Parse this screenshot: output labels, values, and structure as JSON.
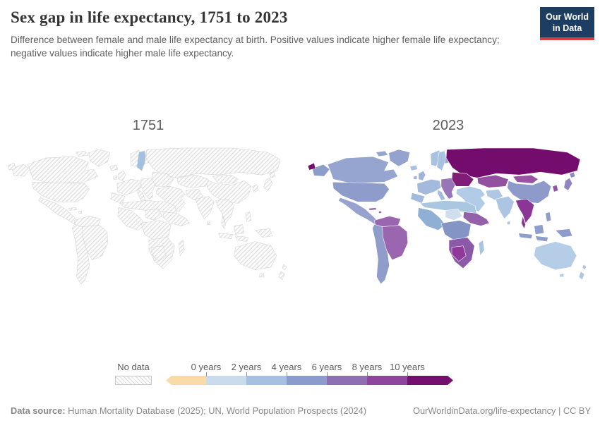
{
  "header": {
    "title": "Sex gap in life expectancy, 1751 to 2023",
    "subtitle": "Difference between female and male life expectancy at birth. Positive values indicate higher female life expectancy; negative values indicate higher male life expectancy.",
    "logo_line1": "Our World",
    "logo_line2": "in Data",
    "logo_bg": "#1d3d63",
    "logo_accent": "#d8403d"
  },
  "maps": {
    "left_label": "1751",
    "right_label": "2023",
    "region_colors": {
      "greenland": {
        "y1751": "nodata",
        "y2023": "#93a3ce"
      },
      "alaska": {
        "y1751": "nodata",
        "y2023": "#8d9dca"
      },
      "canada": {
        "y1751": "nodata",
        "y2023": "#96a5d0"
      },
      "usa": {
        "y1751": "nodata",
        "y2023": "#8d9cca"
      },
      "mexico-ca": {
        "y1751": "nodata",
        "y2023": "#97a3ce"
      },
      "caribbean": {
        "y1751": "nodata",
        "y2023": "#9670b4"
      },
      "south-sa": {
        "y1751": "nodata",
        "y2023": "#909cca"
      },
      "north-sa": {
        "y1751": "nodata",
        "y2023": "#9a66b0"
      },
      "brazil": {
        "y1751": "nodata",
        "y2023": "#9a66b0"
      },
      "iceland": {
        "y1751": "nodata",
        "y2023": "#a8c2e0"
      },
      "uk": {
        "y1751": "nodata",
        "y2023": "#9fb6da"
      },
      "norway": {
        "y1751": "nodata",
        "y2023": "#a8c2e0"
      },
      "sweden": {
        "y1751": "#a3c0de",
        "y2023": "#a8c2e0"
      },
      "finland": {
        "y1751": "nodata",
        "y2023": "#9aa5d0"
      },
      "western-europe": {
        "y1751": "nodata",
        "y2023": "#a3badd"
      },
      "eastern-europe": {
        "y1751": "nodata",
        "y2023": "#9775b7"
      },
      "russia": {
        "y1751": "nodata",
        "y2023": "#740c6e"
      },
      "ukraine": {
        "y1751": "nodata",
        "y2023": "#7f1d78"
      },
      "kazakhstan": {
        "y1751": "nodata",
        "y2023": "#9350a0"
      },
      "mongolia": {
        "y1751": "nodata",
        "y2023": "#9a53a2"
      },
      "china": {
        "y1751": "nodata",
        "y2023": "#8d9aca"
      },
      "korea": {
        "y1751": "nodata",
        "y2023": "#9356a5"
      },
      "japan": {
        "y1751": "nodata",
        "y2023": "#9185c1"
      },
      "middle-east": {
        "y1751": "nodata",
        "y2023": "#b2cbe6"
      },
      "pakistan-afghanistan": {
        "y1751": "nodata",
        "y2023": "#aec8e4"
      },
      "india": {
        "y1751": "nodata",
        "y2023": "#abc5e2"
      },
      "se-asia": {
        "y1751": "nodata",
        "y2023": "#8b3597"
      },
      "indonesia": {
        "y1751": "nodata",
        "y2023": "#8e9dca"
      },
      "png": {
        "y1751": "nodata",
        "y2023": "#8d9cca"
      },
      "australia": {
        "y1751": "nodata",
        "y2023": "#b5cde7"
      },
      "new-zealand": {
        "y1751": "nodata",
        "y2023": "#adc6e2"
      },
      "north-africa": {
        "y1751": "nodata",
        "y2023": "#aac7e2"
      },
      "west-africa": {
        "y1751": "nodata",
        "y2023": "#8fb0d4"
      },
      "sahel": {
        "y1751": "nodata",
        "y2023": "#cfdfee"
      },
      "east-africa": {
        "y1751": "nodata",
        "y2023": "#9460aa"
      },
      "central-africa": {
        "y1751": "nodata",
        "y2023": "#8494c5"
      },
      "southern-africa": {
        "y1751": "nodata",
        "y2023": "#8a5aa8"
      },
      "namibia": {
        "y1751": "nodata",
        "y2023": "#8f3a9b"
      },
      "madagascar": {
        "y1751": "nodata",
        "y2023": "#a9c4e1"
      }
    }
  },
  "legend": {
    "no_data_label": "No data",
    "ticks": [
      "0 years",
      "2 years",
      "4 years",
      "6 years",
      "8 years",
      "10 years"
    ],
    "colors": [
      "#f8dba7",
      "#c9dbec",
      "#a5c0e0",
      "#8b9bcb",
      "#8d6fb2",
      "#8f459d",
      "#76106f"
    ]
  },
  "footer": {
    "source_label": "Data source:",
    "source_text": " Human Mortality Database (2025); UN, World Population Prospects (2024)",
    "link": "OurWorldinData.org/life-expectancy | CC BY"
  },
  "chart_data": {
    "type": "heatmap",
    "subtype": "choropleth world map, small multiples (two years)",
    "title": "Sex gap in life expectancy, 1751 to 2023",
    "unit": "years (female minus male life expectancy at birth)",
    "legend_position": "bottom",
    "bins": [
      {
        "label": "< 0 years",
        "color": "#f8dba7"
      },
      {
        "label": "0–2 years",
        "color": "#c9dbec"
      },
      {
        "label": "2–4 years",
        "color": "#a5c0e0"
      },
      {
        "label": "4–6 years",
        "color": "#8b9bcb"
      },
      {
        "label": "6–8 years",
        "color": "#8d6fb2"
      },
      {
        "label": "8–10 years",
        "color": "#8f459d"
      },
      {
        "label": "10+ years",
        "color": "#76106f"
      }
    ],
    "maps": [
      {
        "year": "1751",
        "note": "All countries shown as no-data (hatched) except Sweden",
        "values_estimated_from_color": {
          "Sweden": "2–4"
        }
      },
      {
        "year": "2023",
        "values_estimated_from_color": {
          "Russia": "10+",
          "Ukraine": "10+",
          "Belarus": "10+",
          "Baltic states": "8–10",
          "Kazakhstan": "8–10",
          "Mongolia": "8–10",
          "Vietnam / Thailand / Cambodia": "8–10",
          "Myanmar": "8–10",
          "Namibia": "8–10",
          "Poland / Eastern Europe": "6–8",
          "Brazil": "6–8",
          "Colombia / Venezuela": "6–8",
          "Sudan / Ethiopia": "6–8",
          "Southern Africa": "6–8",
          "Japan / South Korea": "6–8",
          "Caribbean": "6–8",
          "United States": "4–6",
          "Canada": "4–6",
          "Greenland": "4–6",
          "Mexico / Central America": "4–6",
          "Argentina / Peru": "4–6",
          "China": "4–6",
          "Indonesia / Philippines": "4–6",
          "Central Africa": "4–6",
          "West Africa": "4–6",
          "Western Europe (France, Germany, Spain)": "4–6",
          "United Kingdom": "2–4",
          "Scandinavia": "2–4",
          "India": "2–4",
          "Middle East / Turkey": "2–4",
          "North Africa": "2–4",
          "Madagascar": "2–4",
          "Australia / New Zealand": "2–4",
          "Niger / Chad": "0–2"
        }
      }
    ]
  }
}
